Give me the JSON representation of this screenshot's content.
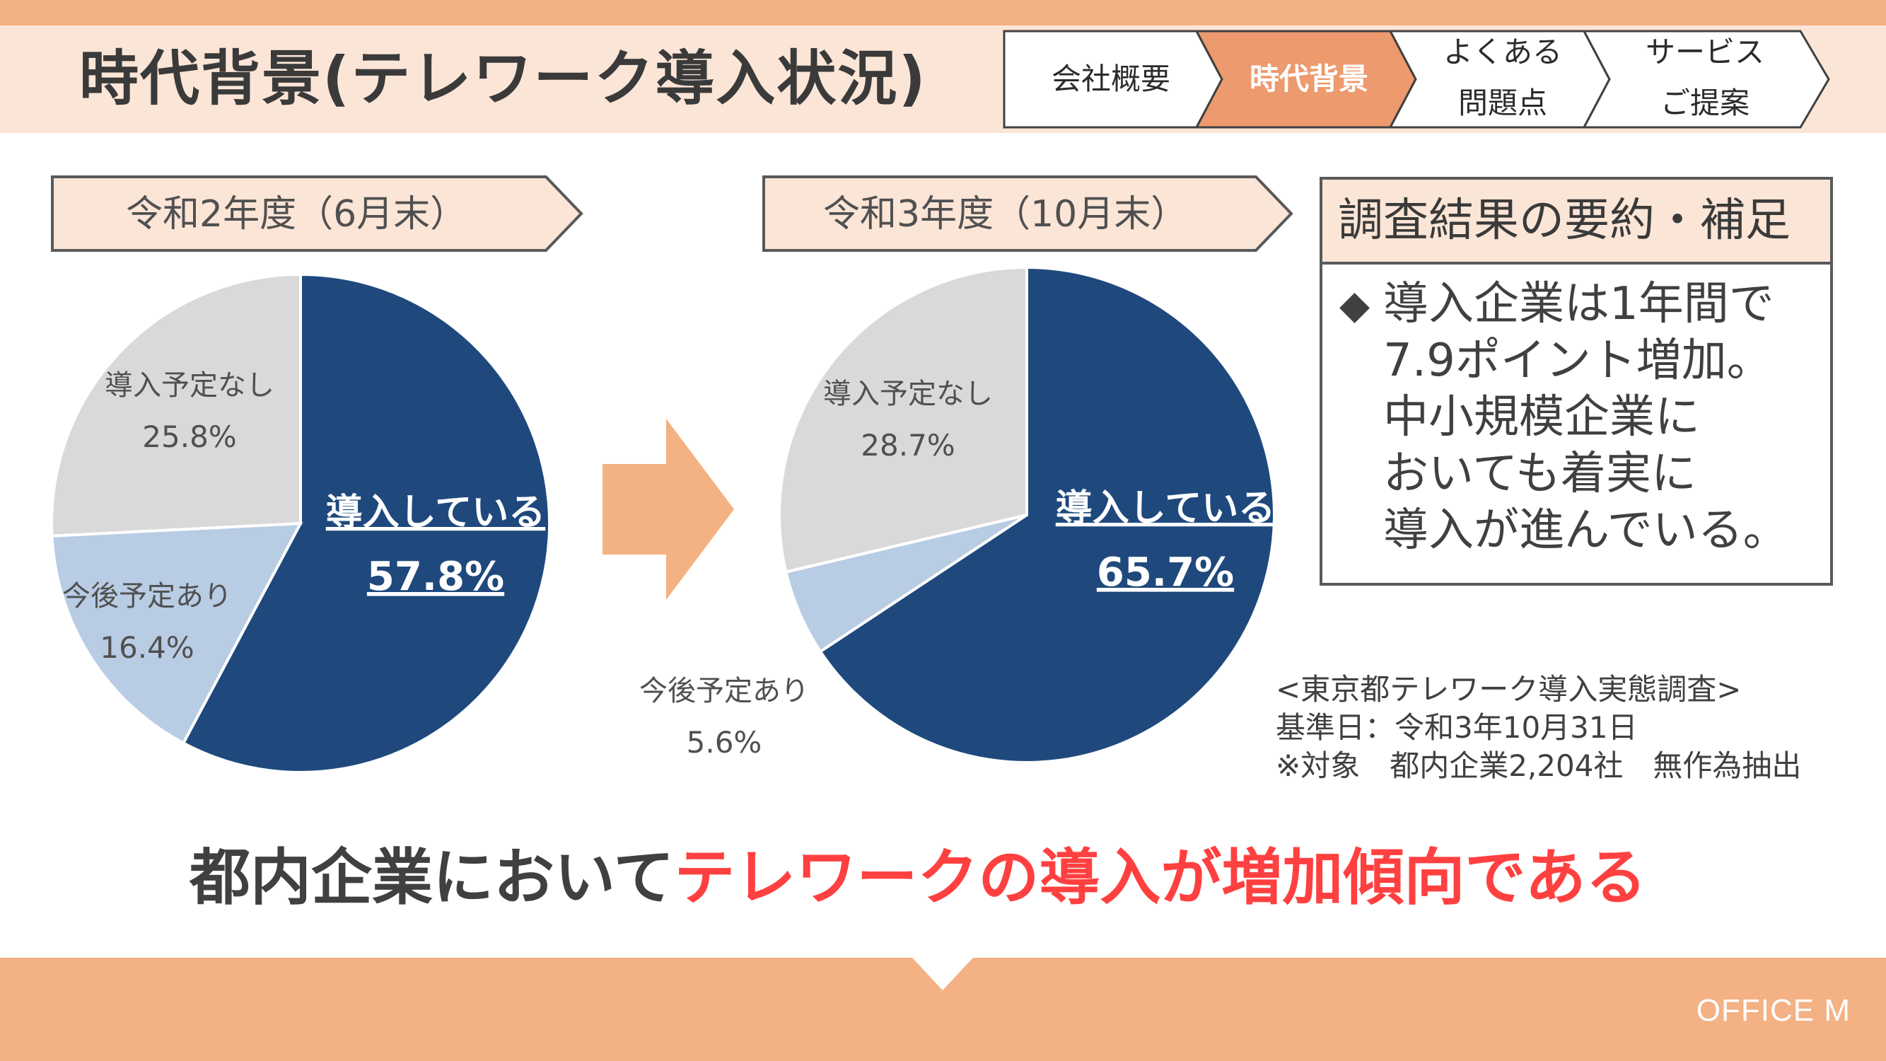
{
  "title": "時代背景(テレワーク導入状況)",
  "nav": [
    {
      "label": "会社概要",
      "active": false
    },
    {
      "label": "時代背景",
      "active": true
    },
    {
      "label_lines": [
        "よくある",
        "問題点"
      ],
      "active": false
    },
    {
      "label_lines": [
        "サービス",
        "ご提案"
      ],
      "active": false
    }
  ],
  "colors": {
    "accent": "#f4b184",
    "accent_light": "#fbe5d6",
    "active_tab": "#ec9a6e",
    "introduced": "#1f497d",
    "planned": "#b8cce4",
    "not_planned": "#d9d9d9",
    "highlight_red": "#ff4040"
  },
  "chart_data": [
    {
      "type": "pie",
      "title": "令和2年度（6月末）",
      "slices": [
        {
          "label": "導入している",
          "value": 57.8,
          "display": "57.8%",
          "color": "#1f497d"
        },
        {
          "label": "今後予定あり",
          "value": 16.4,
          "display": "16.4%",
          "color": "#b8cce4"
        },
        {
          "label": "導入予定なし",
          "value": 25.8,
          "display": "25.8%",
          "color": "#d9d9d9"
        }
      ]
    },
    {
      "type": "pie",
      "title": "令和3年度（10月末）",
      "slices": [
        {
          "label": "導入している",
          "value": 65.7,
          "display": "65.7%",
          "color": "#1f497d"
        },
        {
          "label": "今後予定あり",
          "value": 5.6,
          "display": "5.6%",
          "color": "#b8cce4"
        },
        {
          "label": "導入予定なし",
          "value": 28.7,
          "display": "28.7%",
          "color": "#d9d9d9"
        }
      ]
    }
  ],
  "summary": {
    "heading": "調査結果の要約・補足",
    "bullet": "◆",
    "lines": [
      "導入企業は1年間で",
      "7.9ポイント増加。",
      "中小規模企業に",
      "おいても着実に",
      "導入が進んでいる。"
    ]
  },
  "source": {
    "lines": [
      "<東京都テレワーク導入実態調査>",
      "基準日：令和3年10月31日",
      "※対象　都内企業2,204社　無作為抽出"
    ]
  },
  "conclusion": {
    "normal": "都内企業において",
    "highlight": "テレワークの導入が増加傾向である"
  },
  "footer": {
    "brand": "OFFICE M"
  }
}
